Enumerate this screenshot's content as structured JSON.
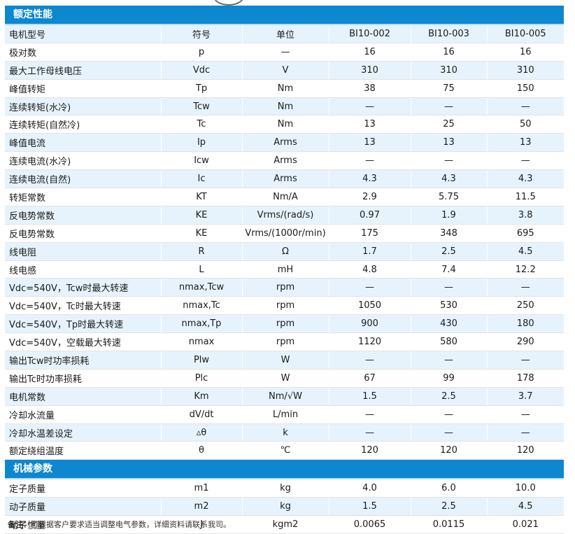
{
  "sections": {
    "rated": {
      "title": "额定性能",
      "rows": [
        [
          "电机型号",
          "符号",
          "单位",
          "BI10-002",
          "BI10-003",
          "BI10-005"
        ],
        [
          "极对数",
          "p",
          "—",
          "16",
          "16",
          "16"
        ],
        [
          "最大工作母线电压",
          "Vdc",
          "V",
          "310",
          "310",
          "310"
        ],
        [
          "峰值转矩",
          "Tp",
          "Nm",
          "38",
          "75",
          "150"
        ],
        [
          "连续转矩(水冷)",
          "Tcw",
          "Nm",
          "—",
          "—",
          "—"
        ],
        [
          "连续转矩(自然冷)",
          "Tc",
          "Nm",
          "13",
          "25",
          "50"
        ],
        [
          "峰值电流",
          "Ip",
          "Arms",
          "13",
          "13",
          "13"
        ],
        [
          "连续电流(水冷)",
          "Icw",
          "Arms",
          "—",
          "—",
          "—"
        ],
        [
          "连续电流(自然)",
          "Ic",
          "Arms",
          "4.3",
          "4.3",
          "4.3"
        ],
        [
          "转矩常数",
          "KT",
          "Nm/A",
          "2.9",
          "5.75",
          "11.5"
        ],
        [
          "反电势常数",
          "KE",
          "Vrms/(rad/s)",
          "0.97",
          "1.9",
          "3.8"
        ],
        [
          "反电势常数",
          "KE",
          "Vrms/(1000r/min)",
          "175",
          "348",
          "695"
        ],
        [
          "线电阻",
          "R",
          "Ω",
          "1.7",
          "2.5",
          "4.5"
        ],
        [
          "线电感",
          "L",
          "mH",
          "4.8",
          "7.4",
          "12.2"
        ],
        [
          "Vdc=540V，Tcw时最大转速",
          "nmax,Tcw",
          "rpm",
          "—",
          "—",
          "—"
        ],
        [
          "Vdc=540V，Tc时最大转速",
          "nmax,Tc",
          "rpm",
          "1050",
          "530",
          "250"
        ],
        [
          "Vdc=540V，Tp时最大转速",
          "nmax,Tp",
          "rpm",
          "900",
          "430",
          "180"
        ],
        [
          "Vdc=540V，空载最大转速",
          "nmax",
          "rpm",
          "1120",
          "580",
          "290"
        ],
        [
          "输出Tcw时功率损耗",
          "Plw",
          "W",
          "—",
          "—",
          "—"
        ],
        [
          "输出Tc时功率损耗",
          "Plc",
          "W",
          "67",
          "99",
          "178"
        ],
        [
          "电机常数",
          "Km",
          "Nm/√W",
          "1.5",
          "2.5",
          "3.7"
        ],
        [
          "冷却水流量",
          "dV/dt",
          "L/min",
          "—",
          "—",
          "—"
        ],
        [
          "冷却水温差设定",
          "▵θ",
          "k",
          "—",
          "—",
          "—"
        ],
        [
          "额定绕组温度",
          "θ",
          "℃",
          "120",
          "120",
          "120"
        ]
      ]
    },
    "mechanical": {
      "title": "机械参数",
      "rows": [
        [
          "定子质量",
          "m1",
          "kg",
          "4.0",
          "6.0",
          "10.0"
        ],
        [
          "动子质量",
          "m2",
          "kg",
          "1.5",
          "2.5",
          "4.5"
        ],
        [
          "动子惯量",
          "J",
          "kgm2",
          "0.0065",
          "0.0115",
          "0.021"
        ]
      ]
    }
  },
  "note": {
    "label": "备注：",
    "text": "可根据客户要求适当调整电气参数，详细资料请联系我司。"
  },
  "colors": {
    "header_blue": "#0d87cf",
    "row_alt": "#e6f3fc"
  }
}
